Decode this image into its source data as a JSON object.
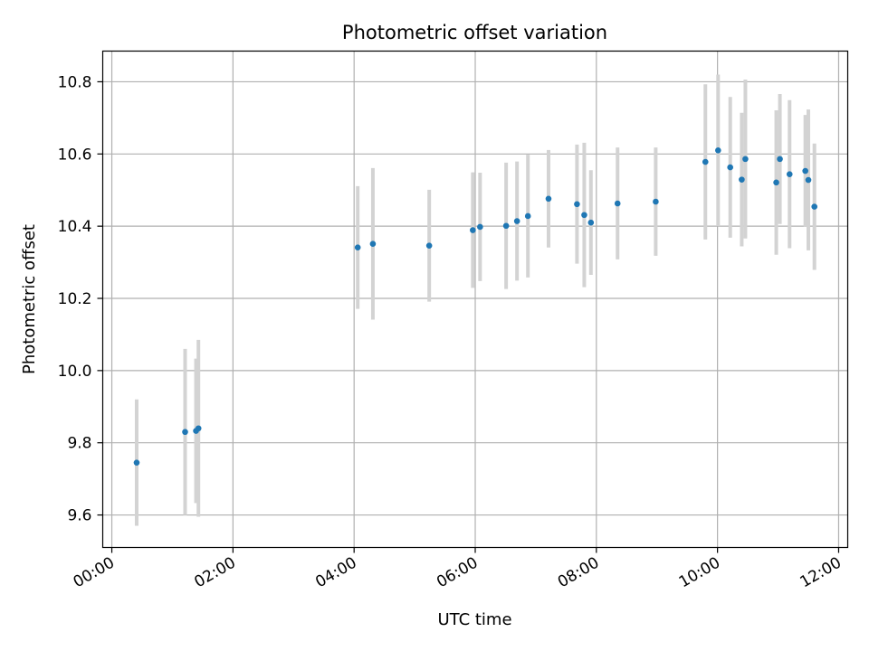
{
  "chart_data": {
    "type": "scatter",
    "title": "Photometric offset variation",
    "xlabel": "UTC time",
    "ylabel": "Photometric offset",
    "x_unit": "hours (UTC)",
    "xlim": [
      -0.15,
      12.15
    ],
    "ylim": [
      9.51,
      10.885
    ],
    "x_ticks": [
      {
        "value": 0,
        "label": "00:00"
      },
      {
        "value": 2,
        "label": "02:00"
      },
      {
        "value": 4,
        "label": "04:00"
      },
      {
        "value": 6,
        "label": "06:00"
      },
      {
        "value": 8,
        "label": "08:00"
      },
      {
        "value": 10,
        "label": "10:00"
      },
      {
        "value": 12,
        "label": "12:00"
      }
    ],
    "y_ticks": [
      {
        "value": 9.6,
        "label": "9.6"
      },
      {
        "value": 9.8,
        "label": "9.8"
      },
      {
        "value": 10.0,
        "label": "10.0"
      },
      {
        "value": 10.2,
        "label": "10.2"
      },
      {
        "value": 10.4,
        "label": "10.4"
      },
      {
        "value": 10.6,
        "label": "10.6"
      },
      {
        "value": 10.8,
        "label": "10.8"
      }
    ],
    "grid": true,
    "legend": "none",
    "colors": {
      "points": "#1f77b4",
      "errorbars": "#d3d3d3",
      "grid": "#b0b0b0",
      "axes": "#000000"
    },
    "points": [
      {
        "x": 0.41,
        "y": 9.745,
        "err": 0.175
      },
      {
        "x": 1.21,
        "y": 9.83,
        "err": 0.23
      },
      {
        "x": 1.39,
        "y": 9.833,
        "err": 0.2
      },
      {
        "x": 1.43,
        "y": 9.84,
        "err": 0.245
      },
      {
        "x": 4.06,
        "y": 10.341,
        "err": 0.17
      },
      {
        "x": 4.31,
        "y": 10.351,
        "err": 0.21
      },
      {
        "x": 5.24,
        "y": 10.346,
        "err": 0.155
      },
      {
        "x": 5.96,
        "y": 10.389,
        "err": 0.16
      },
      {
        "x": 6.08,
        "y": 10.398,
        "err": 0.15
      },
      {
        "x": 6.51,
        "y": 10.401,
        "err": 0.175
      },
      {
        "x": 6.69,
        "y": 10.414,
        "err": 0.165
      },
      {
        "x": 6.87,
        "y": 10.428,
        "err": 0.17
      },
      {
        "x": 7.21,
        "y": 10.476,
        "err": 0.135
      },
      {
        "x": 7.68,
        "y": 10.461,
        "err": 0.165
      },
      {
        "x": 7.8,
        "y": 10.431,
        "err": 0.2
      },
      {
        "x": 7.91,
        "y": 10.41,
        "err": 0.145
      },
      {
        "x": 8.35,
        "y": 10.463,
        "err": 0.155
      },
      {
        "x": 8.98,
        "y": 10.468,
        "err": 0.15
      },
      {
        "x": 9.8,
        "y": 10.578,
        "err": 0.215
      },
      {
        "x": 10.01,
        "y": 10.61,
        "err": 0.21
      },
      {
        "x": 10.21,
        "y": 10.563,
        "err": 0.195
      },
      {
        "x": 10.4,
        "y": 10.529,
        "err": 0.185
      },
      {
        "x": 10.46,
        "y": 10.586,
        "err": 0.22
      },
      {
        "x": 10.97,
        "y": 10.521,
        "err": 0.2
      },
      {
        "x": 11.03,
        "y": 10.586,
        "err": 0.18
      },
      {
        "x": 11.19,
        "y": 10.544,
        "err": 0.205
      },
      {
        "x": 11.45,
        "y": 10.553,
        "err": 0.155
      },
      {
        "x": 11.5,
        "y": 10.528,
        "err": 0.195
      },
      {
        "x": 11.6,
        "y": 10.454,
        "err": 0.175
      }
    ]
  }
}
